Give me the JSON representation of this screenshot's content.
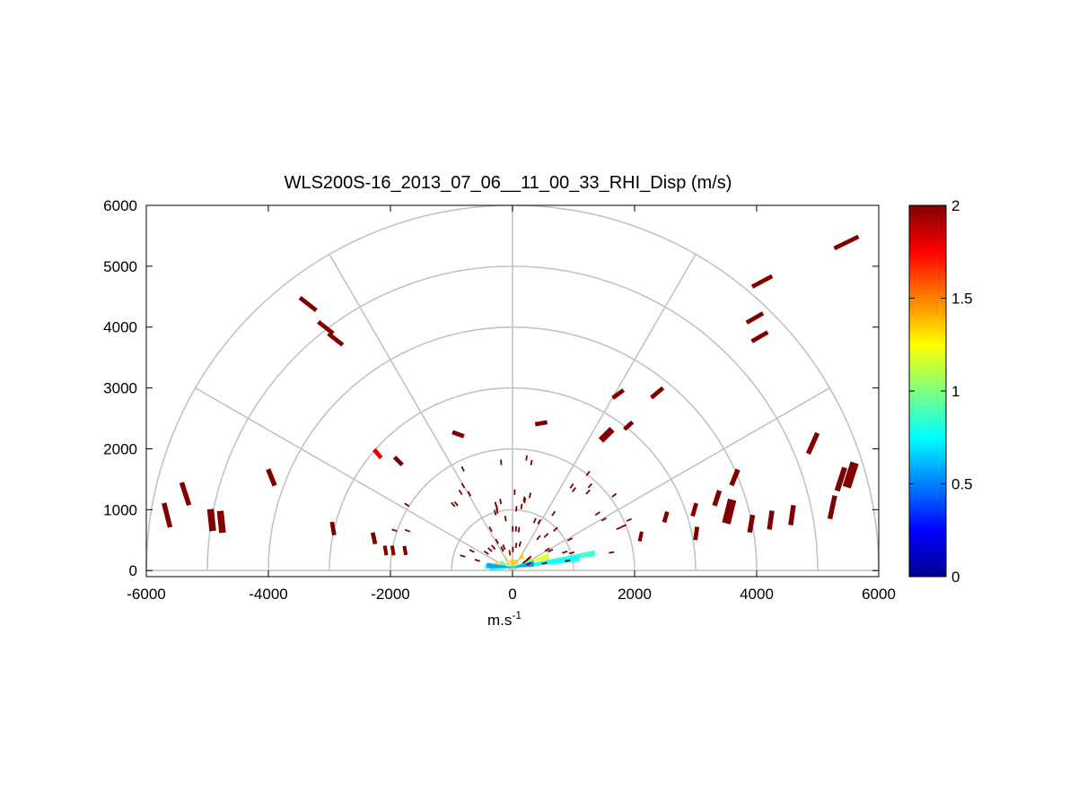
{
  "chart_data": {
    "type": "polar-rhi",
    "title": "WLS200S-16_2013_07_06__11_00_33_RHI_Disp (m/s)",
    "xlabel": "m.s",
    "xlabel_superscript": "-1",
    "ylabel": "",
    "xlim": [
      -6000,
      6000
    ],
    "ylim": [
      -100,
      6000
    ],
    "x_ticks": [
      "-6000",
      "-4000",
      "-2000",
      "0",
      "2000",
      "4000",
      "6000"
    ],
    "y_ticks": [
      "0",
      "1000",
      "2000",
      "3000",
      "4000",
      "5000",
      "6000"
    ],
    "polar_grid": {
      "range_rings": [
        1000,
        2000,
        3000,
        4000,
        5000,
        6000
      ],
      "spokes_deg": [
        0,
        30,
        60,
        90,
        120,
        150,
        180
      ]
    },
    "colorbar": {
      "range": [
        0,
        2
      ],
      "ticks": [
        "0",
        "0.5",
        "1",
        "1.5",
        "2"
      ],
      "colormap": "jet"
    },
    "gates": [
      {
        "x": 5470,
        "y": 5390,
        "v": 2,
        "w": 440,
        "h": 70,
        "a": -26
      },
      {
        "x": 4090,
        "y": 4750,
        "v": 2,
        "w": 370,
        "h": 70,
        "a": -28
      },
      {
        "x": 3970,
        "y": 4150,
        "v": 2,
        "w": 310,
        "h": 70,
        "a": -30
      },
      {
        "x": 4050,
        "y": 3840,
        "v": 2,
        "w": 300,
        "h": 70,
        "a": -30
      },
      {
        "x": 2370,
        "y": 2920,
        "v": 2,
        "w": 250,
        "h": 70,
        "a": -40
      },
      {
        "x": 1730,
        "y": 2900,
        "v": 2,
        "w": 220,
        "h": 70,
        "a": -36
      },
      {
        "x": 1900,
        "y": 2380,
        "v": 2,
        "w": 180,
        "h": 70,
        "a": -42
      },
      {
        "x": 1540,
        "y": 2230,
        "v": 2,
        "w": 260,
        "h": 110,
        "a": -45
      },
      {
        "x": 470,
        "y": 2420,
        "v": 2,
        "w": 200,
        "h": 70,
        "a": -10
      },
      {
        "x": -890,
        "y": 2240,
        "v": 2,
        "w": 200,
        "h": 70,
        "a": 20
      },
      {
        "x": -1870,
        "y": 1800,
        "v": 2,
        "w": 180,
        "h": 70,
        "a": 45
      },
      {
        "x": -2210,
        "y": 1920,
        "v": 1.8,
        "w": 180,
        "h": 70,
        "a": 50
      },
      {
        "x": -3350,
        "y": 4380,
        "v": 2,
        "w": 340,
        "h": 70,
        "a": 38
      },
      {
        "x": -3060,
        "y": 3990,
        "v": 2,
        "w": 310,
        "h": 70,
        "a": 38
      },
      {
        "x": -2900,
        "y": 3800,
        "v": 2,
        "w": 300,
        "h": 70,
        "a": 38
      },
      {
        "x": -3950,
        "y": 1530,
        "v": 2,
        "w": 290,
        "h": 80,
        "a": 68
      },
      {
        "x": -5360,
        "y": 1260,
        "v": 2,
        "w": 390,
        "h": 80,
        "a": 72
      },
      {
        "x": -5660,
        "y": 910,
        "v": 2,
        "w": 410,
        "h": 80,
        "a": 76
      },
      {
        "x": -4930,
        "y": 830,
        "v": 2,
        "w": 360,
        "h": 110,
        "a": 84
      },
      {
        "x": -4770,
        "y": 800,
        "v": 2,
        "w": 360,
        "h": 110,
        "a": 84
      },
      {
        "x": -2940,
        "y": 690,
        "v": 2,
        "w": 220,
        "h": 70,
        "a": 80
      },
      {
        "x": -2270,
        "y": 530,
        "v": 2,
        "w": 190,
        "h": 70,
        "a": 78
      },
      {
        "x": -2080,
        "y": 330,
        "v": 2,
        "w": 160,
        "h": 60,
        "a": 80
      },
      {
        "x": -1960,
        "y": 330,
        "v": 2,
        "w": 160,
        "h": 60,
        "a": 80
      },
      {
        "x": -1760,
        "y": 330,
        "v": 2,
        "w": 150,
        "h": 60,
        "a": 80
      },
      {
        "x": 5540,
        "y": 1570,
        "v": 2,
        "w": 420,
        "h": 140,
        "a": -72
      },
      {
        "x": 5380,
        "y": 1500,
        "v": 2,
        "w": 400,
        "h": 90,
        "a": -72
      },
      {
        "x": 4920,
        "y": 2090,
        "v": 2,
        "w": 370,
        "h": 80,
        "a": -66
      },
      {
        "x": 5240,
        "y": 1040,
        "v": 2,
        "w": 390,
        "h": 80,
        "a": -78
      },
      {
        "x": 3640,
        "y": 1530,
        "v": 2,
        "w": 280,
        "h": 80,
        "a": -68
      },
      {
        "x": 3350,
        "y": 1190,
        "v": 2,
        "w": 260,
        "h": 80,
        "a": -72
      },
      {
        "x": 3550,
        "y": 970,
        "v": 2,
        "w": 400,
        "h": 140,
        "a": -76
      },
      {
        "x": 4580,
        "y": 910,
        "v": 2,
        "w": 330,
        "h": 80,
        "a": -82
      },
      {
        "x": 4230,
        "y": 830,
        "v": 2,
        "w": 310,
        "h": 80,
        "a": -82
      },
      {
        "x": 3910,
        "y": 770,
        "v": 2,
        "w": 290,
        "h": 80,
        "a": -80
      },
      {
        "x": 2980,
        "y": 1000,
        "v": 2,
        "w": 220,
        "h": 70,
        "a": -74
      },
      {
        "x": 3010,
        "y": 610,
        "v": 2,
        "w": 220,
        "h": 70,
        "a": -82
      },
      {
        "x": 2510,
        "y": 880,
        "v": 2,
        "w": 180,
        "h": 70,
        "a": -74
      },
      {
        "x": 2100,
        "y": 560,
        "v": 2,
        "w": 160,
        "h": 60,
        "a": -78
      }
    ],
    "near_scatter": {
      "v": 2,
      "count": 70,
      "r_min": 250,
      "r_max": 2100
    },
    "near_field": [
      {
        "v": 0.85,
        "x0": 1350,
        "y0": 290,
        "x1": -450,
        "y1": 80
      },
      {
        "v": 0.75,
        "x0": 1100,
        "y0": 210,
        "x1": -380,
        "y1": 60
      },
      {
        "v": 1.2,
        "x0": 600,
        "y0": 240,
        "x1": -300,
        "y1": 120
      },
      {
        "v": 0.95,
        "x0": 300,
        "y0": 160,
        "x1": -200,
        "y1": 140
      },
      {
        "v": 1.35,
        "x0": 180,
        "y0": 250,
        "x1": -120,
        "y1": 220
      },
      {
        "v": 0.55,
        "x0": 350,
        "y0": 120,
        "x1": -420,
        "y1": 100
      }
    ]
  }
}
